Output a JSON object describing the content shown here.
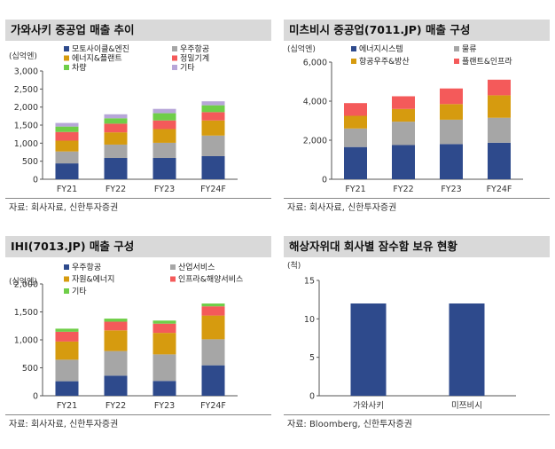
{
  "chart_data": [
    {
      "type": "bar",
      "stacked": true,
      "title": "가와사키 중공업 매출 추이",
      "unit_label": "(십억엔)",
      "categories": [
        "FY21",
        "FY22",
        "FY23",
        "FY24F"
      ],
      "ylim": [
        0,
        3000
      ],
      "yticks": [
        "0",
        "500",
        "1,000",
        "1,500",
        "2,000",
        "2,500",
        "3,000"
      ],
      "ytick_values": [
        0,
        500,
        1000,
        1500,
        2000,
        2500,
        3000
      ],
      "legend_position": "top",
      "series": [
        {
          "name": "모토사이클&엔진",
          "color": "#2e4a8c",
          "values": [
            440,
            590,
            590,
            640
          ]
        },
        {
          "name": "우주항공",
          "color": "#a6a6a6",
          "values": [
            330,
            370,
            420,
            570
          ]
        },
        {
          "name": "에너지&플랜트",
          "color": "#d69b0f",
          "values": [
            300,
            340,
            380,
            420
          ]
        },
        {
          "name": "정밀기계",
          "color": "#f45a5a",
          "values": [
            240,
            240,
            240,
            230
          ]
        },
        {
          "name": "차량",
          "color": "#6fce48",
          "values": [
            150,
            150,
            200,
            190
          ]
        },
        {
          "name": "기타",
          "color": "#b7a6d8",
          "values": [
            100,
            110,
            120,
            110
          ]
        }
      ],
      "source": "자료: 회사자료, 신한투자증권"
    },
    {
      "type": "bar",
      "stacked": true,
      "title": "미츠비시 중공업(7011.JP) 매출 구성",
      "unit_label": "(십억엔)",
      "categories": [
        "FY21",
        "FY22",
        "FY23",
        "FY24F"
      ],
      "ylim": [
        0,
        6000
      ],
      "yticks": [
        "0",
        "2,000",
        "4,000",
        "6,000"
      ],
      "ytick_values": [
        0,
        2000,
        4000,
        6000
      ],
      "legend_position": "top",
      "series": [
        {
          "name": "에너지시스템",
          "color": "#2e4a8c",
          "values": [
            1650,
            1750,
            1800,
            1870
          ]
        },
        {
          "name": "물류",
          "color": "#a6a6a6",
          "values": [
            950,
            1200,
            1250,
            1280
          ]
        },
        {
          "name": "항공우주&방산",
          "color": "#d69b0f",
          "values": [
            650,
            650,
            800,
            1150
          ]
        },
        {
          "name": "플랜트&인프라",
          "color": "#f45a5a",
          "values": [
            650,
            650,
            800,
            800
          ]
        }
      ],
      "source": "자료: 회사자료, 신한투자증권"
    },
    {
      "type": "bar",
      "stacked": true,
      "title": "IHI(7013.JP) 매출 구성",
      "unit_label": "(십억엔)",
      "categories": [
        "FY21",
        "FY22",
        "FY23",
        "FY24F"
      ],
      "ylim": [
        0,
        2000
      ],
      "yticks": [
        "0",
        "500",
        "1,000",
        "1,500",
        "2,000"
      ],
      "ytick_values": [
        0,
        500,
        1000,
        1500,
        2000
      ],
      "legend_position": "top",
      "series": [
        {
          "name": "우주항공",
          "color": "#2e4a8c",
          "values": [
            260,
            360,
            265,
            545
          ]
        },
        {
          "name": "산업서비스",
          "color": "#a6a6a6",
          "values": [
            385,
            440,
            475,
            465
          ]
        },
        {
          "name": "자원&에너지",
          "color": "#d69b0f",
          "values": [
            325,
            370,
            385,
            425
          ]
        },
        {
          "name": "인프라&해양서비스",
          "color": "#f45a5a",
          "values": [
            175,
            155,
            165,
            165
          ]
        },
        {
          "name": "기타",
          "color": "#6fce48",
          "values": [
            55,
            55,
            55,
            50
          ]
        }
      ],
      "source": "자료: 회사자료, 신한투자증권"
    },
    {
      "type": "bar",
      "title": "해상자위대 회사별 잠수함 보유 현황",
      "unit_label": "(척)",
      "categories": [
        "가와사키",
        "미쯔비시"
      ],
      "ylim": [
        0,
        15
      ],
      "yticks": [
        "0",
        "5",
        "10",
        "15"
      ],
      "ytick_values": [
        0,
        5,
        10,
        15
      ],
      "series": [
        {
          "color": "#2e4a8c",
          "values": [
            12,
            12
          ]
        }
      ],
      "source": "자료: Bloomberg, 신한투자증권"
    }
  ]
}
